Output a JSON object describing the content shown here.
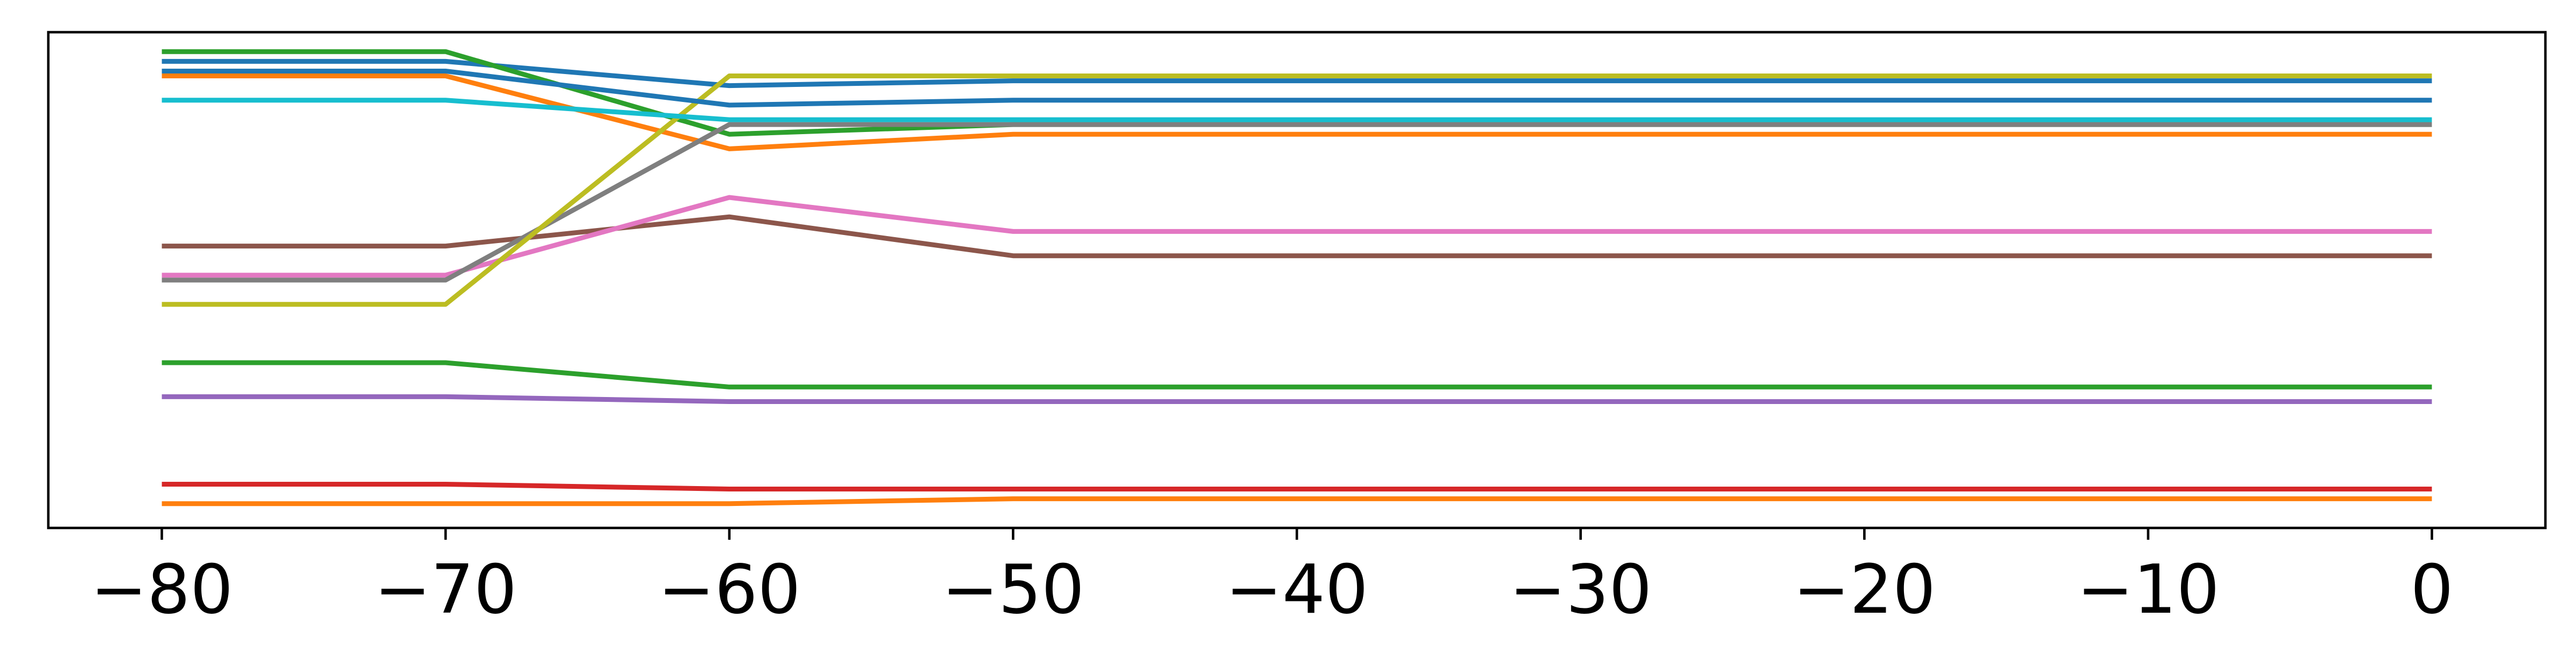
{
  "chart_data": {
    "type": "line",
    "title": "",
    "xlabel": "",
    "ylabel": "",
    "x": [
      -80,
      -70,
      -60,
      -50,
      -40,
      -30,
      -20,
      -10,
      0
    ],
    "xlim": [
      -84,
      4
    ],
    "ylim": [
      -0.02,
      1.0
    ],
    "xticks": [
      -80,
      -70,
      -60,
      -50,
      -40,
      -30,
      -20,
      -10,
      0
    ],
    "xtick_labels": [
      "−80",
      "−70",
      "−60",
      "−50",
      "−40",
      "−30",
      "−20",
      "−10",
      "0"
    ],
    "yticks_visible": false,
    "legend": "none",
    "grid": false,
    "series": [
      {
        "color": "#1f77b4",
        "values": [
          0.94,
          0.94,
          0.89,
          0.9,
          0.9,
          0.9,
          0.9,
          0.9,
          0.9
        ]
      },
      {
        "color": "#ff7f0e",
        "values": [
          0.91,
          0.91,
          0.76,
          0.79,
          0.79,
          0.79,
          0.79,
          0.79,
          0.79
        ]
      },
      {
        "color": "#2ca02c",
        "values": [
          0.96,
          0.96,
          0.79,
          0.81,
          0.81,
          0.81,
          0.81,
          0.81,
          0.81
        ]
      },
      {
        "color": "#d62728",
        "values": [
          0.07,
          0.07,
          0.06,
          0.06,
          0.06,
          0.06,
          0.06,
          0.06,
          0.06
        ]
      },
      {
        "color": "#9467bd",
        "values": [
          0.25,
          0.25,
          0.24,
          0.24,
          0.24,
          0.24,
          0.24,
          0.24,
          0.24
        ]
      },
      {
        "color": "#8c564b",
        "values": [
          0.56,
          0.56,
          0.62,
          0.54,
          0.54,
          0.54,
          0.54,
          0.54,
          0.54
        ]
      },
      {
        "color": "#e377c2",
        "values": [
          0.5,
          0.5,
          0.66,
          0.59,
          0.59,
          0.59,
          0.59,
          0.59,
          0.59
        ]
      },
      {
        "color": "#7f7f7f",
        "values": [
          0.49,
          0.49,
          0.81,
          0.81,
          0.81,
          0.81,
          0.81,
          0.81,
          0.81
        ]
      },
      {
        "color": "#bcbd22",
        "values": [
          0.44,
          0.44,
          0.91,
          0.91,
          0.91,
          0.91,
          0.91,
          0.91,
          0.91
        ]
      },
      {
        "color": "#17becf",
        "values": [
          0.86,
          0.86,
          0.82,
          0.82,
          0.82,
          0.82,
          0.82,
          0.82,
          0.82
        ]
      },
      {
        "color": "#1f77b4",
        "values": [
          0.92,
          0.92,
          0.85,
          0.86,
          0.86,
          0.86,
          0.86,
          0.86,
          0.86
        ]
      },
      {
        "color": "#ff7f0e",
        "values": [
          0.03,
          0.03,
          0.03,
          0.04,
          0.04,
          0.04,
          0.04,
          0.04,
          0.04
        ]
      },
      {
        "color": "#2ca02c",
        "values": [
          0.32,
          0.32,
          0.27,
          0.27,
          0.27,
          0.27,
          0.27,
          0.27,
          0.27
        ]
      }
    ]
  }
}
